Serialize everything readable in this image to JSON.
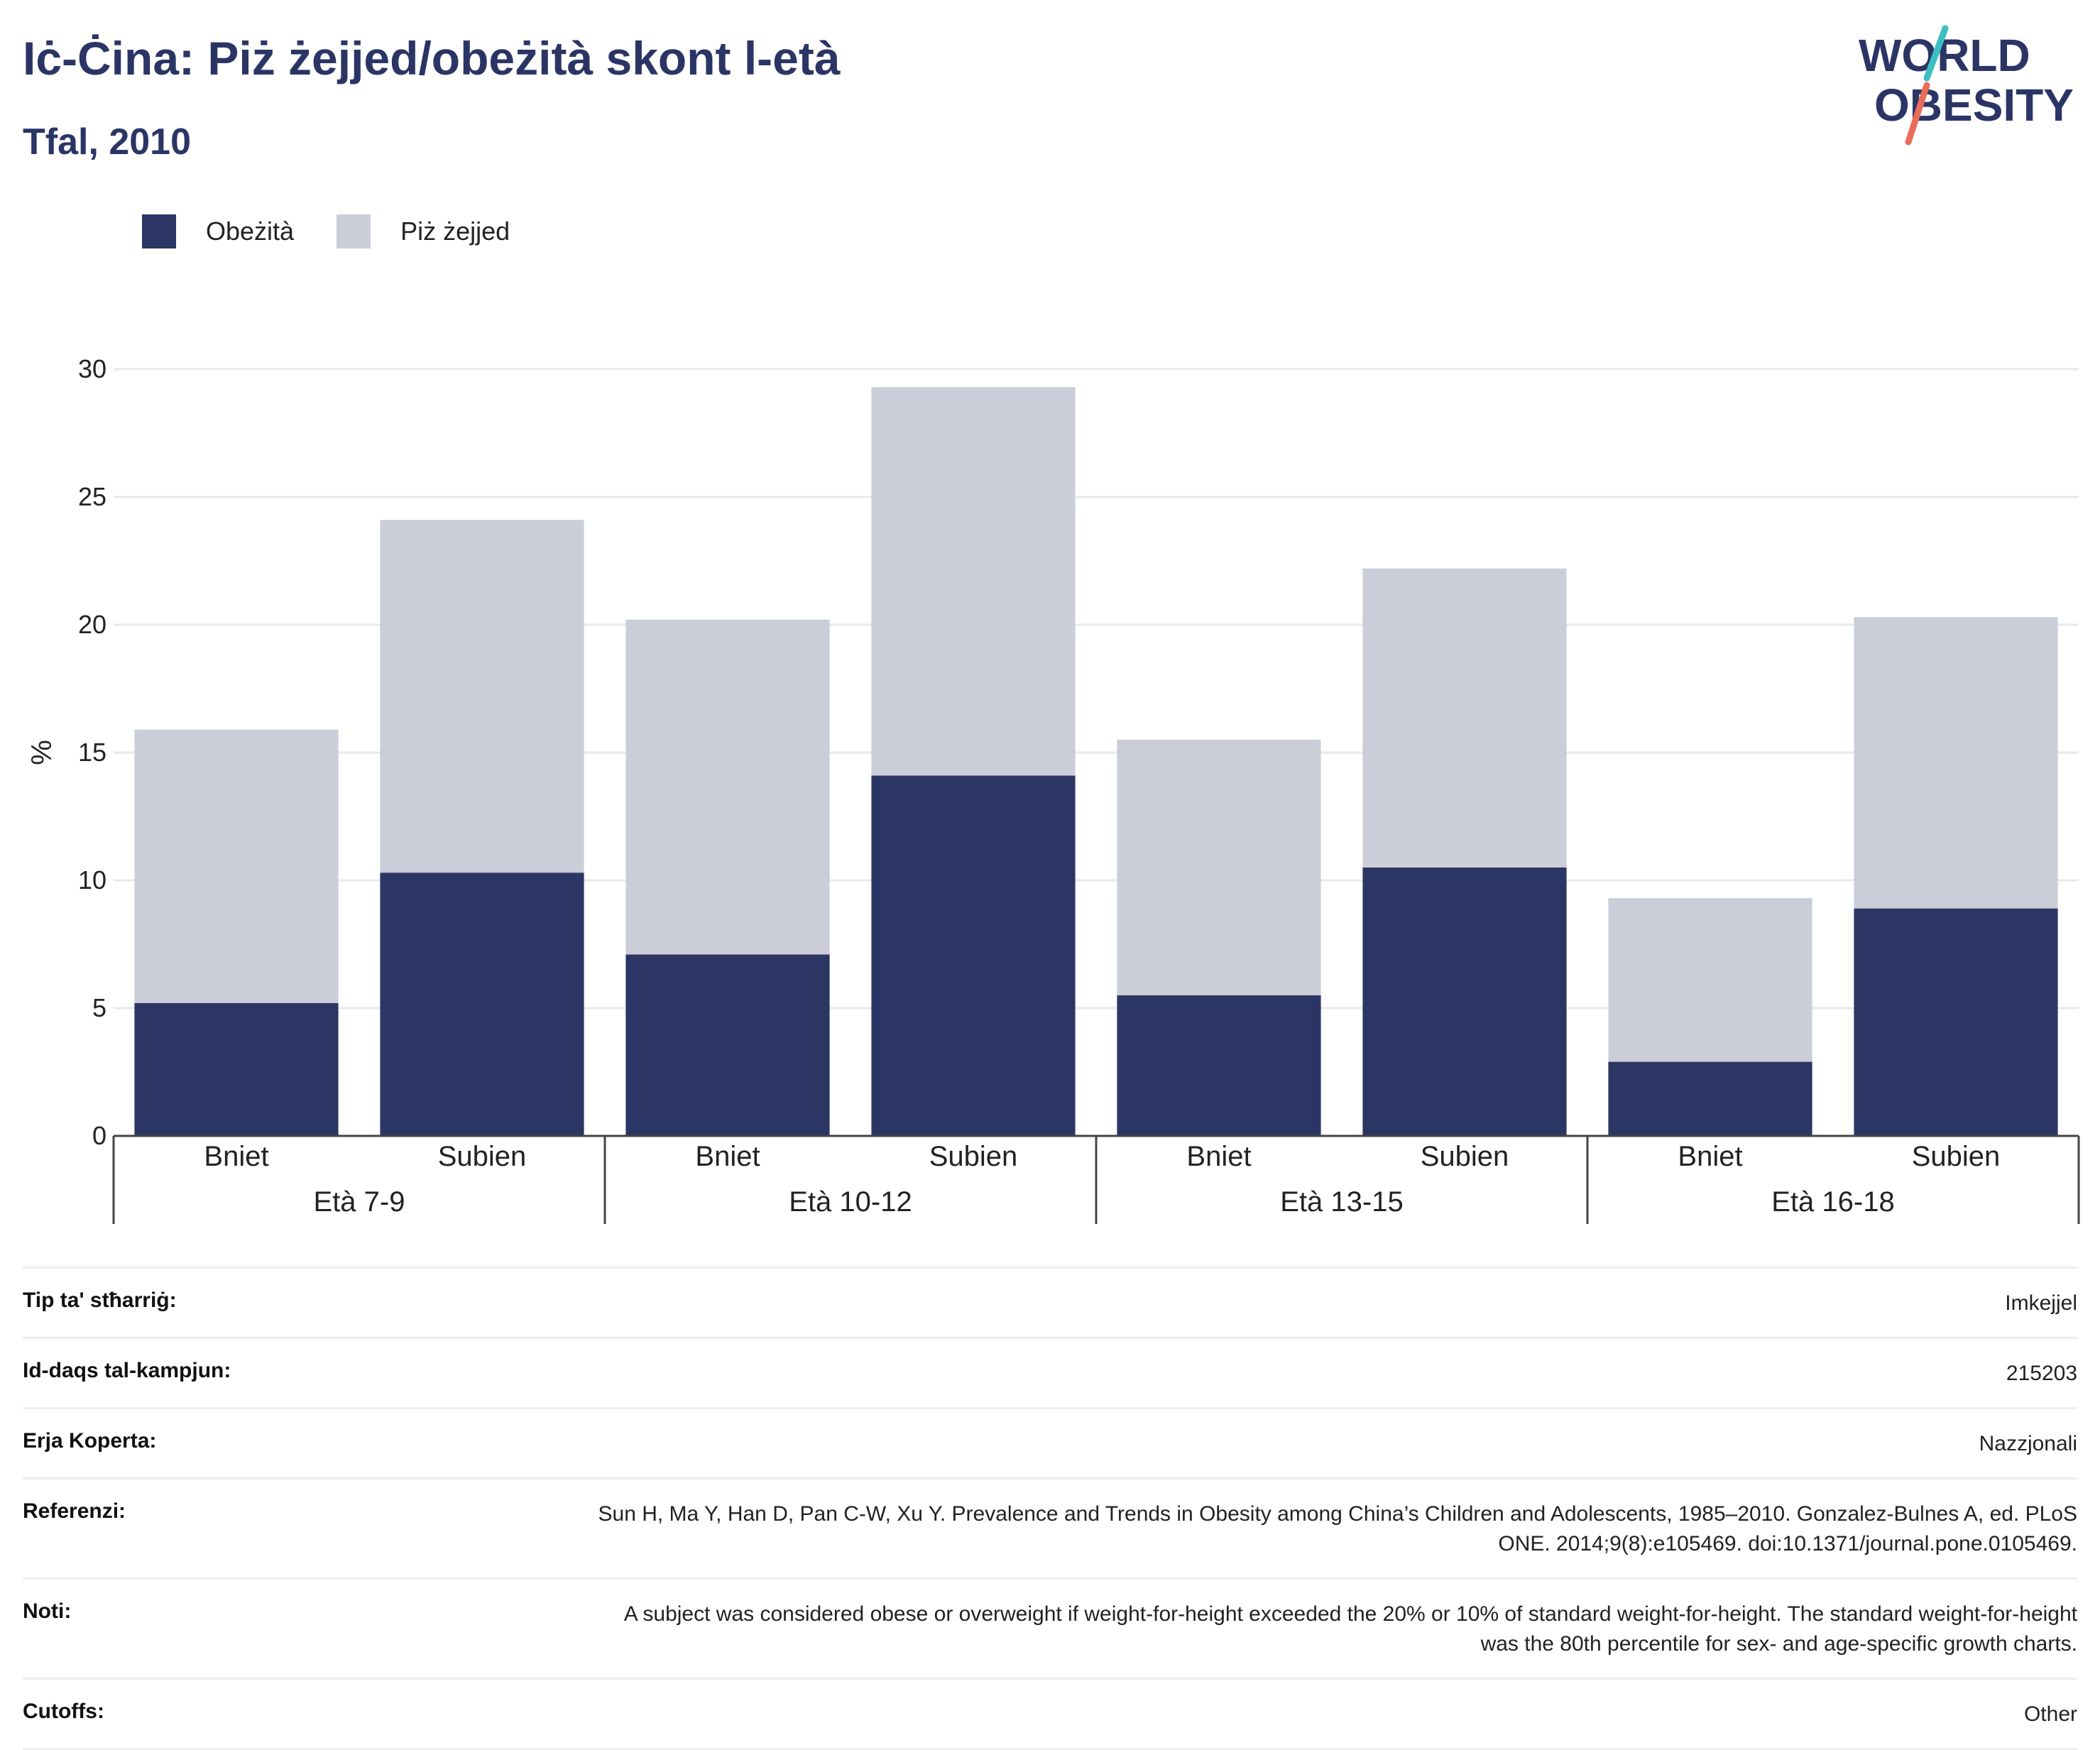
{
  "header": {
    "title": "Iċ-Ċina: Piż żejjed/obeżità skont l-età",
    "subtitle": "Tfal, 2010"
  },
  "logo": {
    "line1": "WORLD",
    "line2": "OBESITY",
    "accent1": "#3bbfc1",
    "accent2": "#e86d5a"
  },
  "legend": [
    {
      "label": "Obeżità",
      "color": "#2b3665"
    },
    {
      "label": "Piż żejjed",
      "color": "#cbcdd9"
    }
  ],
  "chart_data": {
    "type": "bar",
    "stacked": true,
    "ylabel": "%",
    "ylim": [
      0,
      30
    ],
    "yticks": [
      0,
      5,
      10,
      15,
      20,
      25,
      30
    ],
    "grid": true,
    "legend_position": "top-left",
    "groups": [
      "Età 7-9",
      "Età 10-12",
      "Età 13-15",
      "Età 16-18"
    ],
    "categories": [
      "Bniet",
      "Subien",
      "Bniet",
      "Subien",
      "Bniet",
      "Subien",
      "Bniet",
      "Subien"
    ],
    "series": [
      {
        "name": "Obeżità",
        "color": "#2b3665",
        "values": [
          5.2,
          10.3,
          7.1,
          14.1,
          5.5,
          10.5,
          2.9,
          8.9
        ]
      },
      {
        "name": "Piż żejjed",
        "color": "#cbcdd9",
        "values": [
          10.7,
          13.8,
          13.1,
          15.2,
          10.0,
          11.7,
          6.4,
          11.4
        ]
      }
    ]
  },
  "info": [
    {
      "key": "Tip ta' stħarriġ:",
      "value": "Imkejjel"
    },
    {
      "key": "Id-daqs tal-kampjun:",
      "value": "215203"
    },
    {
      "key": "Erja Koperta:",
      "value": "Nazzjonali"
    },
    {
      "key": "Referenzi:",
      "value": "Sun H, Ma Y, Han D, Pan C-W, Xu Y. Prevalence and Trends in Obesity among China’s Children and Adolescents, 1985–2010. Gonzalez-Bulnes A, ed. PLoS ONE. 2014;9(8):e105469. doi:10.1371/journal.pone.0105469."
    },
    {
      "key": "Noti:",
      "value": "A subject was considered obese or overweight if weight-for-height exceeded the 20% or 10% of standard weight-for-height. The standard weight-for-height was the 80th percentile for sex- and age-specific growth charts."
    },
    {
      "key": "Cutoffs:",
      "value": "Other"
    }
  ]
}
